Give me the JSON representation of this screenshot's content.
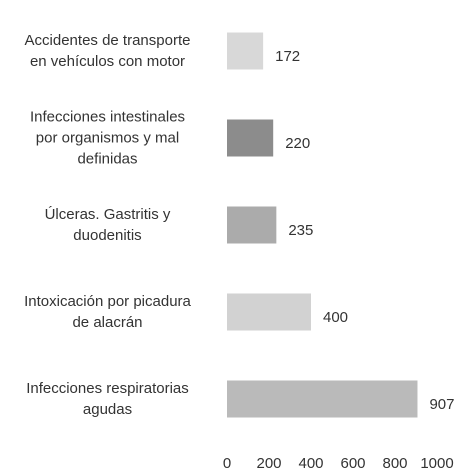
{
  "chart_data": {
    "type": "hbar",
    "categories": [
      "Accidentes de transporte\nen vehículos con motor",
      "Infecciones intestinales\npor organismos y mal\ndefinidas",
      "Úlceras. Gastritis y\nduodenitis",
      "Intoxicación por picadura\nde alacrán",
      "Infecciones respiratorias\nagudas"
    ],
    "values": [
      172,
      220,
      235,
      400,
      907
    ],
    "colors": [
      "#d8d8d8",
      "#8c8c8c",
      "#ababab",
      "#d2d2d2",
      "#bababa"
    ],
    "xlim": [
      0,
      1000
    ],
    "xticks": [
      0,
      200,
      400,
      600,
      800,
      1000
    ],
    "grid": false
  }
}
